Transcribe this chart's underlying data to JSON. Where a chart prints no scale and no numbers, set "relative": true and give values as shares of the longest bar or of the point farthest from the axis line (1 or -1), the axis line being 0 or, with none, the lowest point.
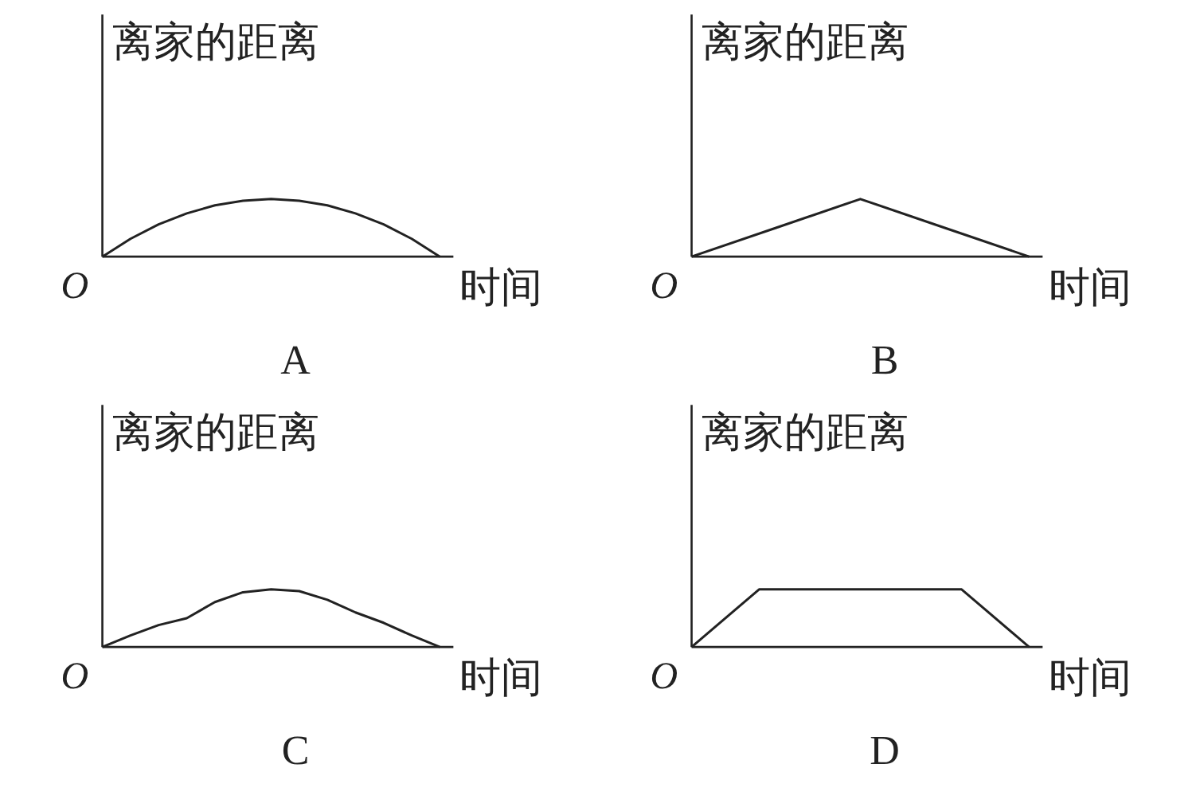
{
  "chart_data": [
    {
      "type": "line",
      "title": "A",
      "xlabel": "时间",
      "ylabel": "离家的距离",
      "annotations": [
        "O"
      ],
      "relative": true,
      "grid": false,
      "categories": [
        null,
        null,
        null,
        null,
        null,
        null,
        null,
        null,
        null,
        null,
        null,
        null,
        null
      ],
      "series": [
        {
          "color": "#222222",
          "values": [
            0,
            0.31,
            0.56,
            0.75,
            0.89,
            0.97,
            1,
            0.97,
            0.89,
            0.75,
            0.56,
            0.31,
            0
          ]
        }
      ]
    },
    {
      "type": "line",
      "title": "B",
      "xlabel": "时间",
      "ylabel": "离家的距离",
      "annotations": [
        "O"
      ],
      "relative": true,
      "grid": false,
      "categories": [
        null,
        null,
        null,
        null,
        null
      ],
      "series": [
        {
          "color": "#222222",
          "values": [
            0,
            0.5,
            1,
            0.5,
            0
          ]
        }
      ]
    },
    {
      "type": "line",
      "title": "C",
      "xlabel": "时间",
      "ylabel": "离家的距离",
      "annotations": [
        "O"
      ],
      "relative": true,
      "grid": false,
      "categories": [
        null,
        null,
        null,
        null,
        null,
        null,
        null,
        null,
        null,
        null,
        null,
        null,
        null
      ],
      "series": [
        {
          "color": "#222222",
          "values": [
            0,
            0.2,
            0.38,
            0.5,
            0.78,
            0.95,
            1,
            0.97,
            0.82,
            0.6,
            0.42,
            0.2,
            0
          ]
        }
      ]
    },
    {
      "type": "line",
      "title": "D",
      "xlabel": "时间",
      "ylabel": "离家的距离",
      "annotations": [
        "O"
      ],
      "relative": true,
      "grid": false,
      "categories": [
        null,
        null,
        null,
        null,
        null,
        null
      ],
      "series": [
        {
          "color": "#222222",
          "values": [
            0,
            1,
            1,
            1,
            1,
            0
          ]
        }
      ]
    }
  ]
}
